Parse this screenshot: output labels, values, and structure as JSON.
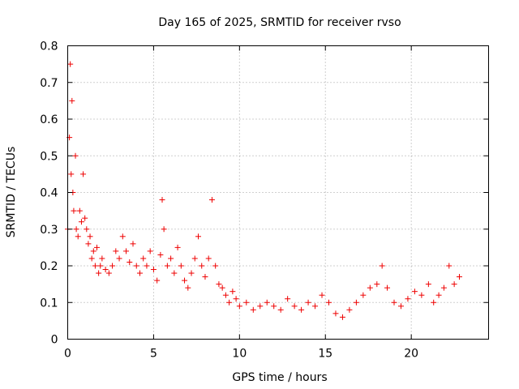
{
  "chart_data": {
    "type": "scatter",
    "title": "Day 165 of 2025, SRMTID for receiver rvso",
    "xlabel": "GPS time / hours",
    "ylabel": "SRMTID / TECUs",
    "xlim": [
      0,
      24.5
    ],
    "ylim": [
      0,
      0.8
    ],
    "x_ticks": [
      0,
      5,
      10,
      15,
      20
    ],
    "x_tick_labels": [
      "0",
      "5",
      "10",
      "15",
      "20"
    ],
    "y_ticks": [
      0,
      0.1,
      0.2,
      0.3,
      0.4,
      0.5,
      0.6,
      0.7,
      0.8
    ],
    "y_tick_labels": [
      "0",
      "0.1",
      "0.2",
      "0.3",
      "0.4",
      "0.5",
      "0.6",
      "0.7",
      "0.8"
    ],
    "grid": true,
    "marker": "+",
    "series": [
      {
        "name": "SRMTID",
        "color": "#ee0000",
        "x": [
          0.0,
          0.1,
          0.15,
          0.2,
          0.25,
          0.3,
          0.35,
          0.45,
          0.5,
          0.6,
          0.7,
          0.8,
          0.9,
          1.0,
          1.1,
          1.2,
          1.3,
          1.4,
          1.5,
          1.6,
          1.7,
          1.8,
          1.9,
          2.0,
          2.2,
          2.4,
          2.6,
          2.8,
          3.0,
          3.2,
          3.4,
          3.6,
          3.8,
          4.0,
          4.2,
          4.4,
          4.6,
          4.8,
          5.0,
          5.2,
          5.4,
          5.5,
          5.6,
          5.8,
          6.0,
          6.2,
          6.4,
          6.6,
          6.8,
          7.0,
          7.2,
          7.4,
          7.6,
          7.8,
          8.0,
          8.2,
          8.4,
          8.6,
          8.8,
          9.0,
          9.2,
          9.4,
          9.6,
          9.8,
          10.0,
          10.4,
          10.8,
          11.2,
          11.6,
          12.0,
          12.4,
          12.8,
          13.2,
          13.6,
          14.0,
          14.4,
          14.8,
          15.2,
          15.6,
          16.0,
          16.4,
          16.8,
          17.2,
          17.6,
          18.0,
          18.3,
          18.6,
          19.0,
          19.4,
          19.8,
          20.2,
          20.6,
          21.0,
          21.3,
          21.6,
          21.9,
          22.2,
          22.5,
          22.8
        ],
        "y": [
          0.3,
          0.55,
          0.75,
          0.45,
          0.65,
          0.4,
          0.35,
          0.5,
          0.3,
          0.28,
          0.35,
          0.32,
          0.45,
          0.33,
          0.3,
          0.26,
          0.28,
          0.22,
          0.24,
          0.2,
          0.25,
          0.18,
          0.2,
          0.22,
          0.19,
          0.18,
          0.2,
          0.24,
          0.22,
          0.28,
          0.24,
          0.21,
          0.26,
          0.2,
          0.18,
          0.22,
          0.2,
          0.24,
          0.19,
          0.16,
          0.23,
          0.38,
          0.3,
          0.2,
          0.22,
          0.18,
          0.25,
          0.2,
          0.16,
          0.14,
          0.18,
          0.22,
          0.28,
          0.2,
          0.17,
          0.22,
          0.38,
          0.2,
          0.15,
          0.14,
          0.12,
          0.1,
          0.13,
          0.11,
          0.09,
          0.1,
          0.08,
          0.09,
          0.1,
          0.09,
          0.08,
          0.11,
          0.09,
          0.08,
          0.1,
          0.09,
          0.12,
          0.1,
          0.07,
          0.06,
          0.08,
          0.1,
          0.12,
          0.14,
          0.15,
          0.2,
          0.14,
          0.1,
          0.09,
          0.11,
          0.13,
          0.12,
          0.15,
          0.1,
          0.12,
          0.14,
          0.2,
          0.15,
          0.17
        ]
      }
    ]
  }
}
